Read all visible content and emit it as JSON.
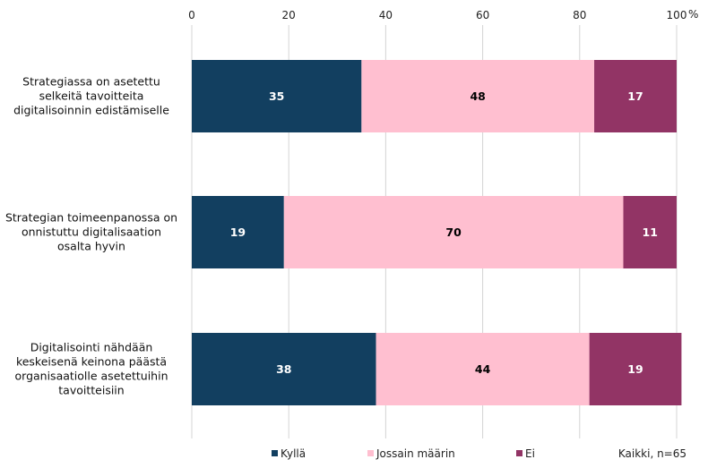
{
  "chart_data": {
    "type": "bar",
    "orientation": "horizontal",
    "stacked": true,
    "categories": [
      [
        "Strategiassa on asetettu",
        "selkeitä tavoitteita",
        "digitalisoinnin edistämiselle"
      ],
      [
        "Strategian toimeenpanossa on",
        "onnistuttu digitalisaation",
        "osalta hyvin"
      ],
      [
        "Digitalisointi nähdään",
        "keskeisenä keinona päästä",
        "organisaatiolle asetettuihin",
        "tavoitteisiin"
      ]
    ],
    "series": [
      {
        "name": "Kyllä",
        "values": [
          35,
          19,
          38
        ],
        "color": "#123f60",
        "label_color": "#ffffff"
      },
      {
        "name": "Jossain määrin",
        "values": [
          48,
          70,
          44
        ],
        "color": "#ffbfd0",
        "label_color": "#000000"
      },
      {
        "name": "Ei",
        "values": [
          17,
          11,
          19
        ],
        "color": "#923465",
        "label_color": "#ffffff"
      }
    ],
    "x_ticks": [
      0,
      20,
      40,
      60,
      80,
      100
    ],
    "x_unit": "%",
    "xlim": [
      0,
      100
    ],
    "grid": true,
    "legend_position": "bottom",
    "note": "Kaikki, n=65"
  }
}
